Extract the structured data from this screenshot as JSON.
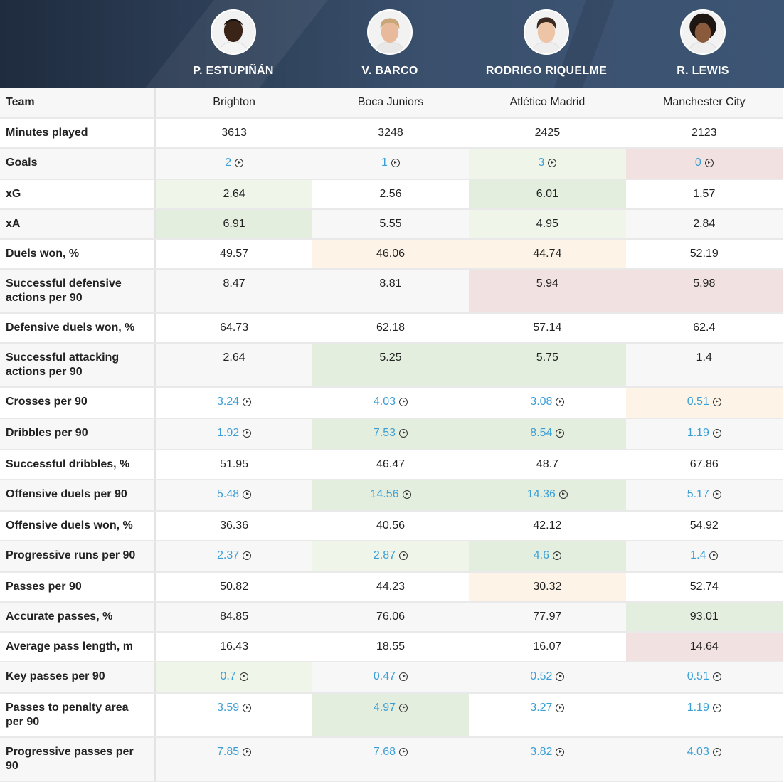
{
  "players": [
    {
      "name": "P. ESTUPIÑÁN"
    },
    {
      "name": "V. BARCO"
    },
    {
      "name": "RODRIGO RIQUELME"
    },
    {
      "name": "R. LEWIS"
    }
  ],
  "rows": [
    {
      "label": "Team",
      "values": [
        "Brighton",
        "Boca Juniors",
        "Atlético Madrid",
        "Manchester City"
      ]
    },
    {
      "label": "Minutes played",
      "values": [
        "3613",
        "3248",
        "2425",
        "2123"
      ]
    },
    {
      "label": "Goals",
      "values": [
        "2",
        "1",
        "3",
        "0"
      ],
      "link": true
    },
    {
      "label": "xG",
      "values": [
        "2.64",
        "2.56",
        "6.01",
        "1.57"
      ]
    },
    {
      "label": "xA",
      "values": [
        "6.91",
        "5.55",
        "4.95",
        "2.84"
      ]
    },
    {
      "label": "Duels won, %",
      "values": [
        "49.57",
        "46.06",
        "44.74",
        "52.19"
      ]
    },
    {
      "label": "Successful defensive actions per 90",
      "values": [
        "8.47",
        "8.81",
        "5.94",
        "5.98"
      ]
    },
    {
      "label": "Defensive duels won, %",
      "values": [
        "64.73",
        "62.18",
        "57.14",
        "62.4"
      ]
    },
    {
      "label": "Successful attacking actions per 90",
      "values": [
        "2.64",
        "5.25",
        "5.75",
        "1.4"
      ]
    },
    {
      "label": "Crosses per 90",
      "values": [
        "3.24",
        "4.03",
        "3.08",
        "0.51"
      ],
      "link": true
    },
    {
      "label": "Dribbles per 90",
      "values": [
        "1.92",
        "7.53",
        "8.54",
        "1.19"
      ],
      "link": true
    },
    {
      "label": "Successful dribbles, %",
      "values": [
        "51.95",
        "46.47",
        "48.7",
        "67.86"
      ]
    },
    {
      "label": "Offensive duels per 90",
      "values": [
        "5.48",
        "14.56",
        "14.36",
        "5.17"
      ],
      "link": true
    },
    {
      "label": "Offensive duels won, %",
      "values": [
        "36.36",
        "40.56",
        "42.12",
        "54.92"
      ]
    },
    {
      "label": "Progressive runs per 90",
      "values": [
        "2.37",
        "2.87",
        "4.6",
        "1.4"
      ],
      "link": true
    },
    {
      "label": "Passes per 90",
      "values": [
        "50.82",
        "44.23",
        "30.32",
        "52.74"
      ]
    },
    {
      "label": "Accurate passes, %",
      "values": [
        "84.85",
        "76.06",
        "77.97",
        "93.01"
      ]
    },
    {
      "label": "Average pass length, m",
      "values": [
        "16.43",
        "18.55",
        "16.07",
        "14.64"
      ]
    },
    {
      "label": "Key passes per 90",
      "values": [
        "0.7",
        "0.47",
        "0.52",
        "0.51"
      ],
      "link": true
    },
    {
      "label": "Passes to penalty area per 90",
      "values": [
        "3.59",
        "4.97",
        "3.27",
        "1.19"
      ],
      "link": true
    },
    {
      "label": "Progressive passes per 90",
      "values": [
        "7.85",
        "7.68",
        "3.82",
        "4.03"
      ],
      "link": true
    }
  ],
  "colors": {
    "header_dark": "#1f2b3e",
    "header_light": "#3d5574",
    "link": "#3b9fd6",
    "good_light": "#f0f5ea",
    "good": "#e4eedf",
    "warn": "#fdf4e7",
    "bad": "#f2e1e1"
  }
}
